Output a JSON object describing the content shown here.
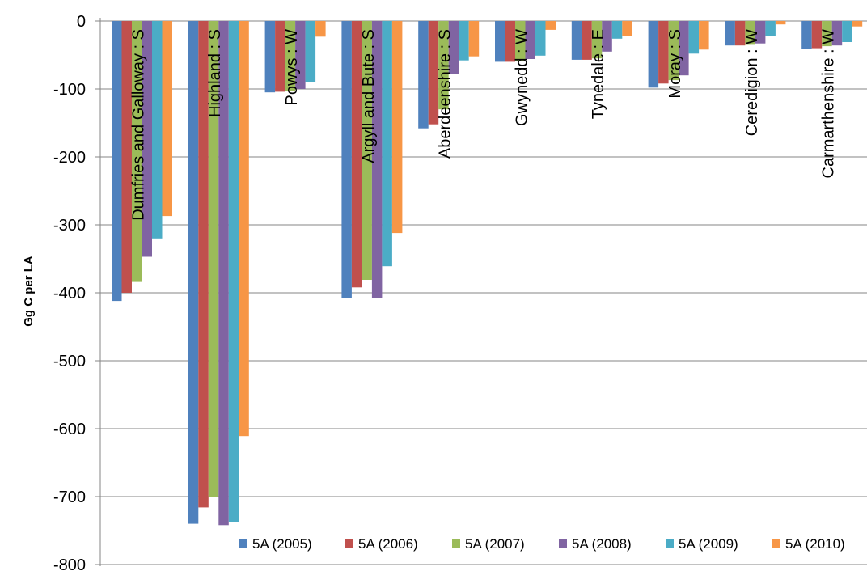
{
  "chart_data": {
    "type": "bar",
    "title": "",
    "xlabel": "",
    "ylabel": "Gg C per LA",
    "ylim": [
      -800,
      0
    ],
    "yticks": [
      0,
      -100,
      -200,
      -300,
      -400,
      -500,
      -600,
      -700,
      -800
    ],
    "grid": "horizontal",
    "legend_position": "bottom-right",
    "categories": [
      "Dumfries and Galloway : S",
      "Highland : S",
      "Powys : W",
      "Argyll and Bute : S",
      "Aberdeenshire : S",
      "Gwynedd : W",
      "Tynedale : E",
      "Moray : S",
      "Ceredigion : W",
      "Carmarthenshire : W"
    ],
    "series": [
      {
        "name": "5A (2005)",
        "color": "#4F81BD",
        "values": [
          -412,
          -740,
          -105,
          -408,
          -158,
          -60,
          -57,
          -98,
          -36,
          -41
        ]
      },
      {
        "name": "5A (2006)",
        "color": "#C0504D",
        "values": [
          -400,
          -716,
          -104,
          -392,
          -152,
          -60,
          -57,
          -92,
          -36,
          -40
        ]
      },
      {
        "name": "5A (2007)",
        "color": "#9BBB59",
        "values": [
          -384,
          -700,
          -103,
          -381,
          -130,
          -59,
          -55,
          -87,
          -35,
          -37
        ]
      },
      {
        "name": "5A (2008)",
        "color": "#8064A2",
        "values": [
          -347,
          -742,
          -100,
          -408,
          -78,
          -56,
          -45,
          -80,
          -33,
          -36
        ]
      },
      {
        "name": "5A (2009)",
        "color": "#4BACC6",
        "values": [
          -320,
          -738,
          -90,
          -361,
          -58,
          -51,
          -26,
          -48,
          -22,
          -31
        ]
      },
      {
        "name": "5A (2010)",
        "color": "#F79646",
        "values": [
          -287,
          -611,
          -23,
          -312,
          -52,
          -13,
          -22,
          -42,
          -5,
          -8
        ]
      }
    ]
  }
}
